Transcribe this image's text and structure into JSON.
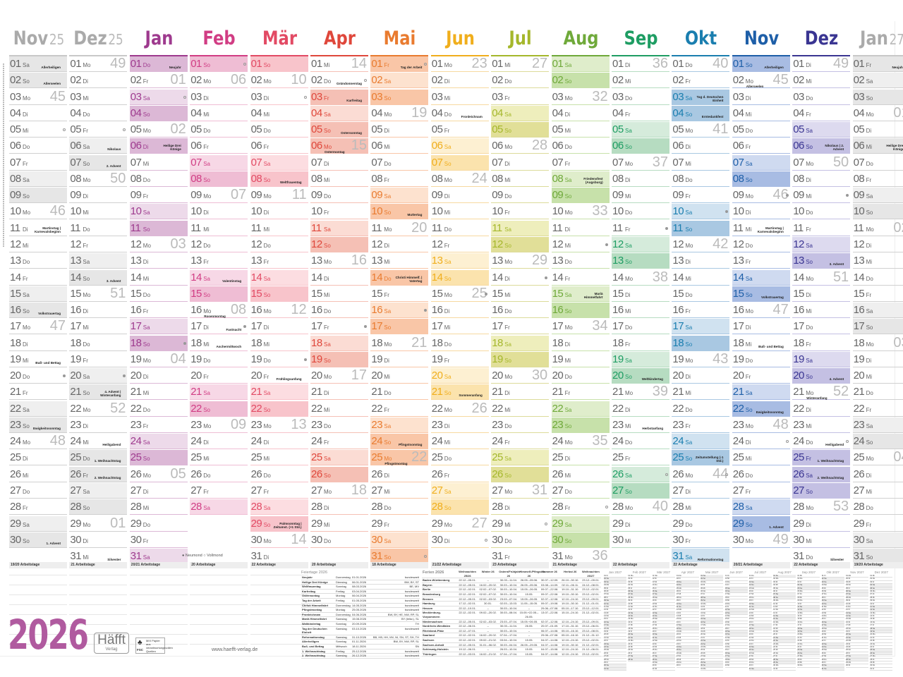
{
  "weekday_names": [
    "Mo",
    "Di",
    "Mi",
    "Do",
    "Fr",
    "Sa",
    "So"
  ],
  "months": [
    {
      "name": "Nov",
      "year": "25",
      "muted": true,
      "color": "#9c9c9c",
      "sat": "#efefef",
      "sun": "#e6e6e6",
      "line": "#d0d0d0",
      "first_weekday": "Sa",
      "days": 30,
      "weeks": {
        "3": "45",
        "10": "46",
        "17": "47",
        "24": "48"
      },
      "holidays": [
        {
          "day": 1,
          "label": "Allerheiligen",
          "public": true
        },
        {
          "day": 2,
          "label": "Allerseelen"
        },
        {
          "day": 11,
          "label": "Martinstag | Karnevalsbeginn"
        },
        {
          "day": 16,
          "label": "Volkstrauertag"
        },
        {
          "day": 19,
          "label": "Buß- und Bettag"
        },
        {
          "day": 23,
          "label": "Ewigkeitssonntag"
        },
        {
          "day": 30,
          "label": "1. Advent"
        }
      ],
      "moons": {
        "5": "full",
        "20": "new"
      },
      "workdays": "19/20 Arbeitstage"
    },
    {
      "name": "Dez",
      "year": "25",
      "muted": true,
      "color": "#9c9c9c",
      "sat": "#efefef",
      "sun": "#e6e6e6",
      "line": "#d0d0d0",
      "first_weekday": "Mo",
      "days": 31,
      "weeks": {
        "1": "49",
        "8": "50",
        "15": "51",
        "22": "52",
        "29": "01"
      },
      "holidays": [
        {
          "day": 6,
          "label": "Nikolaus"
        },
        {
          "day": 7,
          "label": "2. Advent"
        },
        {
          "day": 14,
          "label": "3. Advent"
        },
        {
          "day": 21,
          "label": "4. Advent | Winteranfang"
        },
        {
          "day": 24,
          "label": "Heiligabend"
        },
        {
          "day": 25,
          "label": "1. Weihnachtstag",
          "public": true
        },
        {
          "day": 26,
          "label": "2. Weihnachtstag",
          "public": true
        },
        {
          "day": 31,
          "label": "Silvester"
        }
      ],
      "moons": {
        "5": "full",
        "20": "new"
      },
      "workdays": "21 Arbeitstage"
    },
    {
      "name": "Jan",
      "color": "#9e3a8e",
      "sat": "#eddaea",
      "sun": "#dcb8d6",
      "line": "#dcb8d6",
      "first_weekday": "Do",
      "days": 31,
      "weeks": {
        "2": "01",
        "5": "02",
        "12": "03",
        "19": "04",
        "26": "05"
      },
      "holidays": [
        {
          "day": 1,
          "label": "Neujahr",
          "public": true
        },
        {
          "day": 6,
          "label": "Heilige Drei Könige",
          "public": true
        }
      ],
      "moons": {
        "3": "full",
        "18": "new"
      },
      "workdays": "20/21 Arbeitstage"
    },
    {
      "name": "Feb",
      "color": "#d13d84",
      "sat": "#f7d8e6",
      "sun": "#efbdd4",
      "line": "#efbdd4",
      "first_weekday": "So",
      "days": 28,
      "weeks": {
        "2": "06",
        "9": "07",
        "16": "08",
        "23": "09"
      },
      "holidays": [
        {
          "day": 14,
          "label": "Valentinstag"
        },
        {
          "day": 16,
          "label": "Rosenmontag"
        },
        {
          "day": 17,
          "label": "Fastnacht"
        },
        {
          "day": 18,
          "label": "Aschermittwoch"
        }
      ],
      "moons": {
        "1": "full",
        "17": "new"
      },
      "workdays": "20 Arbeitstage"
    },
    {
      "name": "Mär",
      "color": "#e24a64",
      "sat": "#fcdde1",
      "sun": "#f8c4cb",
      "line": "#f8c4cb",
      "first_weekday": "So",
      "days": 31,
      "weeks": {
        "2": "10",
        "9": "11",
        "16": "12",
        "23": "13",
        "30": "14"
      },
      "holidays": [
        {
          "day": 8,
          "label": "Weltfrauentag"
        },
        {
          "day": 20,
          "label": "Frühlingsanfang"
        },
        {
          "day": 29,
          "label": "Palmsonntag | Zeitumst. (+1 Std.)"
        }
      ],
      "moons": {
        "3": "full",
        "19": "new"
      },
      "workdays": "22 Arbeitstage"
    },
    {
      "name": "Apr",
      "color": "#df473b",
      "sat": "#fbdcd4",
      "sun": "#f5c0b5",
      "line": "#f5c0b5",
      "first_weekday": "Mi",
      "days": 30,
      "weeks": {
        "1": "14",
        "6": "15",
        "13": "16",
        "20": "17",
        "27": "18"
      },
      "holidays": [
        {
          "day": 2,
          "label": "Gründonnerstag"
        },
        {
          "day": 3,
          "label": "Karfreitag",
          "public": true
        },
        {
          "day": 5,
          "label": "Ostersonntag",
          "public": true
        },
        {
          "day": 6,
          "label": "Ostermontag",
          "public": true
        }
      ],
      "moons": {
        "2": "full",
        "17": "new"
      },
      "workdays": "20 Arbeitstage"
    },
    {
      "name": "Mai",
      "color": "#e97b2f",
      "sat": "#fde2cf",
      "sun": "#f9c6a7",
      "line": "#f9c6a7",
      "first_weekday": "Fr",
      "days": 31,
      "weeks": {
        "4": "19",
        "11": "20",
        "18": "21",
        "25": "22"
      },
      "holidays": [
        {
          "day": 1,
          "label": "Tag der Arbeit",
          "public": true
        },
        {
          "day": 10,
          "label": "Muttertag"
        },
        {
          "day": 14,
          "label": "Christi Himmelf. | Vatertag",
          "public": true
        },
        {
          "day": 24,
          "label": "Pfingstsonntag",
          "public": true
        },
        {
          "day": 25,
          "label": "Pfingstmontag",
          "public": true
        }
      ],
      "moons": {
        "1": "full",
        "16": "new",
        "31": "full"
      },
      "workdays": "18 Arbeitstage"
    },
    {
      "name": "Jun",
      "color": "#f0ae1c",
      "sat": "#fdf0d2",
      "sun": "#fbe3ad",
      "line": "#f7d9a0",
      "first_weekday": "Mo",
      "days": 30,
      "weeks": {
        "1": "23",
        "8": "24",
        "15": "25",
        "22": "26",
        "29": "27"
      },
      "holidays": [
        {
          "day": 4,
          "label": "Fronleichnam"
        },
        {
          "day": 21,
          "label": "Sommeranfang"
        }
      ],
      "moons": {
        "15": "new",
        "30": "full"
      },
      "workdays": "21/22 Arbeitstage"
    },
    {
      "name": "Jul",
      "color": "#a5b72b",
      "sat": "#eeeebc",
      "sun": "#e1df98",
      "line": "#dcdb9a",
      "first_weekday": "Mi",
      "days": 31,
      "weeks": {
        "1": "27",
        "6": "28",
        "13": "29",
        "20": "30",
        "27": "31"
      },
      "holidays": [],
      "moons": {
        "14": "new",
        "29": "full"
      },
      "workdays": "23 Arbeitstage"
    },
    {
      "name": "Aug",
      "color": "#6fa93a",
      "sat": "#dfedcb",
      "sun": "#c7e1aa",
      "line": "#c7e1aa",
      "first_weekday": "Sa",
      "days": 31,
      "weeks": {
        "3": "32",
        "10": "33",
        "17": "34",
        "24": "35",
        "31": "36"
      },
      "holidays": [
        {
          "day": 8,
          "label": "Friedensfest (Augsburg)"
        },
        {
          "day": 15,
          "label": "Mariä Himmelfahrt"
        }
      ],
      "moons": {
        "12": "new",
        "28": "full"
      },
      "workdays": "21 Arbeitstage"
    },
    {
      "name": "Sep",
      "color": "#1e9d63",
      "sat": "#d5ebdb",
      "sun": "#b6dcc1",
      "line": "#b6dcc1",
      "first_weekday": "Di",
      "days": 30,
      "weeks": {
        "1": "36",
        "7": "37",
        "14": "38",
        "21": "39",
        "28": "40"
      },
      "holidays": [
        {
          "day": 20,
          "label": "Weltkindertag"
        },
        {
          "day": 23,
          "label": "Herbstanfang"
        }
      ],
      "moons": {
        "11": "new",
        "26": "full"
      },
      "workdays": "22 Arbeitstage"
    },
    {
      "name": "Okt",
      "color": "#1a7eaf",
      "sat": "#d0e2f0",
      "sun": "#a9c8e2",
      "line": "#a9c8e2",
      "first_weekday": "Do",
      "days": 31,
      "weeks": {
        "1": "40",
        "5": "41",
        "12": "42",
        "19": "43",
        "26": "44"
      },
      "holidays": [
        {
          "day": 3,
          "label": "Tag d. Deutschen Einheit",
          "public": true
        },
        {
          "day": 4,
          "label": "Erntedankfest"
        },
        {
          "day": 25,
          "label": "Zeitumstellung (-1 Std.)"
        },
        {
          "day": 31,
          "label": "Reformationstag"
        }
      ],
      "moons": {
        "10": "new",
        "26": "full"
      },
      "workdays": "22 Arbeitstage"
    },
    {
      "name": "Nov",
      "color": "#1e5fa8",
      "sat": "#cfdaf0",
      "sun": "#a8bce3",
      "line": "#a8bce3",
      "first_weekday": "So",
      "days": 30,
      "weeks": {
        "2": "45",
        "9": "46",
        "16": "47",
        "23": "48",
        "30": "49"
      },
      "holidays": [
        {
          "day": 1,
          "label": "Allerheiligen",
          "public": true
        },
        {
          "day": 2,
          "label": "Allerseelen"
        },
        {
          "day": 11,
          "label": "Martinstag | Karnevalsbeginn"
        },
        {
          "day": 15,
          "label": "Volkstrauertag"
        },
        {
          "day": 18,
          "label": "Buß- und Bettag"
        },
        {
          "day": 22,
          "label": "Ewigkeitssonntag"
        },
        {
          "day": 29,
          "label": "1. Advent"
        }
      ],
      "moons": {
        "9": "new",
        "24": "full"
      },
      "workdays": "20/21 Arbeitstage"
    },
    {
      "name": "Dez",
      "color": "#3a3592",
      "sat": "#dddaef",
      "sun": "#c4c0e3",
      "line": "#c4c0e3",
      "first_weekday": "Di",
      "days": 31,
      "weeks": {
        "1": "49",
        "7": "50",
        "14": "51",
        "21": "52",
        "28": "53"
      },
      "holidays": [
        {
          "day": 6,
          "label": "Nikolaus | 2. Advent"
        },
        {
          "day": 13,
          "label": "3. Advent"
        },
        {
          "day": 20,
          "label": "4. Advent"
        },
        {
          "day": 21,
          "label": "Winteranfang"
        },
        {
          "day": 24,
          "label": "Heiligabend"
        },
        {
          "day": 25,
          "label": "1. Weihnachtstag",
          "public": true
        },
        {
          "day": 26,
          "label": "2. Weihnachtstag",
          "public": true
        },
        {
          "day": 31,
          "label": "Silvester"
        }
      ],
      "moons": {
        "9": "new",
        "24": "full"
      },
      "workdays": "22 Arbeitstage"
    },
    {
      "name": "Jan",
      "year": "27",
      "muted": true,
      "color": "#9c9c9c",
      "sat": "#efefef",
      "sun": "#e6e6e6",
      "line": "#d0d0d0",
      "first_weekday": "Fr",
      "days": 31,
      "weeks": {
        "4": "01",
        "11": "02",
        "18": "03",
        "25": "04"
      },
      "holidays": [
        {
          "day": 1,
          "label": "Neujahr",
          "public": true
        },
        {
          "day": 6,
          "label": "Heilige Drei Könige",
          "public": true
        }
      ],
      "moons": {
        "7": "new",
        "22": "full"
      },
      "workdays": "19/20 Arbeitstage"
    }
  ],
  "moon_legend": "● Neumond  ○ Vollmond",
  "feiertage": {
    "title": "Feiertage 2026",
    "rows": [
      [
        "Neujahr",
        "Donnerstag",
        "01.01.2026",
        "bundesweit"
      ],
      [
        "Heilige Drei Könige",
        "Dienstag",
        "06.01.2026",
        "BW, BY, ST"
      ],
      [
        "Weltfrauentag",
        "Sonntag",
        "08.03.2026",
        "BE, MV"
      ],
      [
        "Karfreitag",
        "Freitag",
        "03.04.2026",
        "bundesweit"
      ],
      [
        "Ostermontag",
        "Montag",
        "06.04.2026",
        "bundesweit"
      ],
      [
        "Tag der Arbeit",
        "Freitag",
        "01.05.2026",
        "bundesweit"
      ],
      [
        "Christi Himmelfahrt",
        "Donnerstag",
        "14.05.2026",
        "bundesweit"
      ],
      [
        "Pfingstmontag",
        "Montag",
        "25.05.2026",
        "bundesweit"
      ],
      [
        "Fronleichnam",
        "Donnerstag",
        "04.06.2026",
        "BW, BY, HE, NW, RP, SL"
      ],
      [
        "Mariä Himmelfahrt",
        "Samstag",
        "15.08.2026",
        "BY (teilw.), SL"
      ],
      [
        "Weltkindertag",
        "Sonntag",
        "20.09.2026",
        "TH"
      ],
      [
        "Tag der Deutschen Einheit",
        "Samstag",
        "03.10.2026",
        "bundesweit"
      ],
      [
        "Reformationstag",
        "Samstag",
        "31.10.2026",
        "BB, HB, HH, MV, NI, SN, ST, SH, TH"
      ],
      [
        "Allerheiligen",
        "Sonntag",
        "01.11.2026",
        "BW, BY, NW, RP, SL"
      ],
      [
        "Buß- und Bettag",
        "Mittwoch",
        "18.11.2026",
        "SN"
      ],
      [
        "1. Weihnachtstag",
        "Freitag",
        "25.12.2026",
        "bundesweit"
      ],
      [
        "2. Weihnachtstag",
        "Samstag",
        "26.12.2026",
        "bundesweit"
      ]
    ]
  },
  "ferien": {
    "title": "Ferien 2026",
    "columns": [
      "Weihnachten 25/26",
      "Winter 26",
      "Ostern/Frühjahr 26",
      "Himmelf./Pfingsten 26",
      "Sommer 26",
      "Herbst 26",
      "Weihnachten 26/27"
    ],
    "rows": [
      [
        "Baden-Württemberg",
        "22.12.–05.01.",
        "–",
        "30.03.–11.04.",
        "26.05.–05.06.",
        "30.07.–12.09.",
        "26.10.–30.10.",
        "23.12.–09.01."
      ],
      [
        "Bayern",
        "22.12.–05.01.",
        "16.02.–20.02.",
        "30.03.–10.04.",
        "26.05.–05.06.",
        "03.08.–14.09.",
        "02.11.–06.11.",
        "24.12.–08.01."
      ],
      [
        "Berlin",
        "22.12.–02.01.",
        "02.02.–07.02.",
        "30.03.–10.04.",
        "15.05.–26.05.",
        "09.07.–22.08.",
        "19.10.–31.10.",
        "23.12.–02.01."
      ],
      [
        "Brandenburg",
        "22.12.–02.01.",
        "02.02.–07.02.",
        "30.03.–10.04.",
        "15.05.",
        "09.07.–22.08.",
        "19.10.–30.10.",
        "23.12.–02.01."
      ],
      [
        "Bremen",
        "22.12.–05.01.",
        "02.02.–03.02.",
        "23.03.–07.04.",
        "15.05.–26.05.",
        "02.07.–12.08.",
        "12.10.–24.10.",
        "23.12.–09.01."
      ],
      [
        "Hamburg",
        "17.12.–02.01.",
        "30.01.",
        "02.03.–13.03.",
        "11.05.–15.05.",
        "09.07.–19.08.",
        "19.10.–30.10.",
        "21.12.–01.01."
      ],
      [
        "Hessen",
        "22.12.–10.01.",
        "–",
        "30.03.–10.04.",
        "–",
        "29.06.–07.08.",
        "05.10.–17.10.",
        "23.12.–12.01."
      ],
      [
        "Mecklenburg-Vorpommern",
        "22.12.–02.01.",
        "09.02.–20.02.",
        "30.03.–08.04.",
        "15.05.+22.05.–26.05.",
        "13.07.–22.08.",
        "15.10.–24.10.",
        "21.12.–02.01."
      ],
      [
        "Niedersachsen",
        "22.12.–05.01.",
        "02.02.–03.02.",
        "23.03.–07.04.",
        "15.05.+26.05.",
        "02.07.–12.08.",
        "12.10.–24.10.",
        "23.12.–09.01."
      ],
      [
        "Nordrhein-Westfalen",
        "22.12.–06.01.",
        "–",
        "30.03.–11.04.",
        "26.05.",
        "20.07.–01.09.",
        "17.10.–31.10.",
        "23.12.–06.01."
      ],
      [
        "Rheinland-Pfalz",
        "22.12.–07.01.",
        "–",
        "30.03.–10.04.",
        "–",
        "06.07.–14.08.",
        "05.10.–16.10.",
        "23.12.–08.01."
      ],
      [
        "Saarland",
        "22.12.–02.01.",
        "16.02.–20.02.",
        "07.04.–17.04.",
        "–",
        "29.06.–07.08.",
        "05.10.–16.10.",
        "21.12.–31.12."
      ],
      [
        "Sachsen",
        "22.12.–02.01.",
        "09.02.–21.02.",
        "03.04.–10.04.",
        "15.05.",
        "04.07.–14.08.",
        "12.10.–24.10.",
        "23.12.–02.01."
      ],
      [
        "Sachsen-Anhalt",
        "22.12.–05.01.",
        "31.01.–06.02.",
        "30.03.–04.04.",
        "26.05.–29.05.",
        "04.07.–14.08.",
        "19.10.–30.10.",
        "21.12.–02.01."
      ],
      [
        "Schleswig-Holstein",
        "19.12.–06.01.",
        "–",
        "26.03.–10.04.",
        "15.05.",
        "04.07.–15.08.",
        "12.10.–24.10.",
        "21.12.–06.01."
      ],
      [
        "Thüringen",
        "22.12.–03.01.",
        "16.02.–21.02.",
        "07.04.–17.04.",
        "15.05.",
        "04.07.–14.08.",
        "12.10.–24.10.",
        "23.12.–02.01."
      ]
    ]
  },
  "calendar_2027": [
    {
      "label": "Jan 2027",
      "first_weekday": "Fr",
      "days": 31
    },
    {
      "label": "Feb 2027",
      "first_weekday": "Mo",
      "days": 28
    },
    {
      "label": "Mär 2027",
      "first_weekday": "Mo",
      "days": 31
    },
    {
      "label": "Apr 2027",
      "first_weekday": "Do",
      "days": 30
    },
    {
      "label": "Mai 2027",
      "first_weekday": "Sa",
      "days": 31
    },
    {
      "label": "Jun 2027",
      "first_weekday": "Di",
      "days": 30
    },
    {
      "label": "Jul 2027",
      "first_weekday": "Do",
      "days": 31
    },
    {
      "label": "Aug 2027",
      "first_weekday": "So",
      "days": 31
    },
    {
      "label": "Sep 2027",
      "first_weekday": "Mi",
      "days": 30
    },
    {
      "label": "Okt 2027",
      "first_weekday": "Fr",
      "days": 31
    },
    {
      "label": "Nov 2027",
      "first_weekday": "Mo",
      "days": 30
    },
    {
      "label": "Dez 2027",
      "first_weekday": "Mi",
      "days": 31
    }
  ],
  "footer": {
    "year": "2026",
    "logo_main": "Häfft",
    "logo_sub": "Verlag",
    "fsc": "FSC",
    "fsc_text": "MIX Papier aus verantwortungsvollen Quellen",
    "url": "www.haefft-verlag.de"
  }
}
